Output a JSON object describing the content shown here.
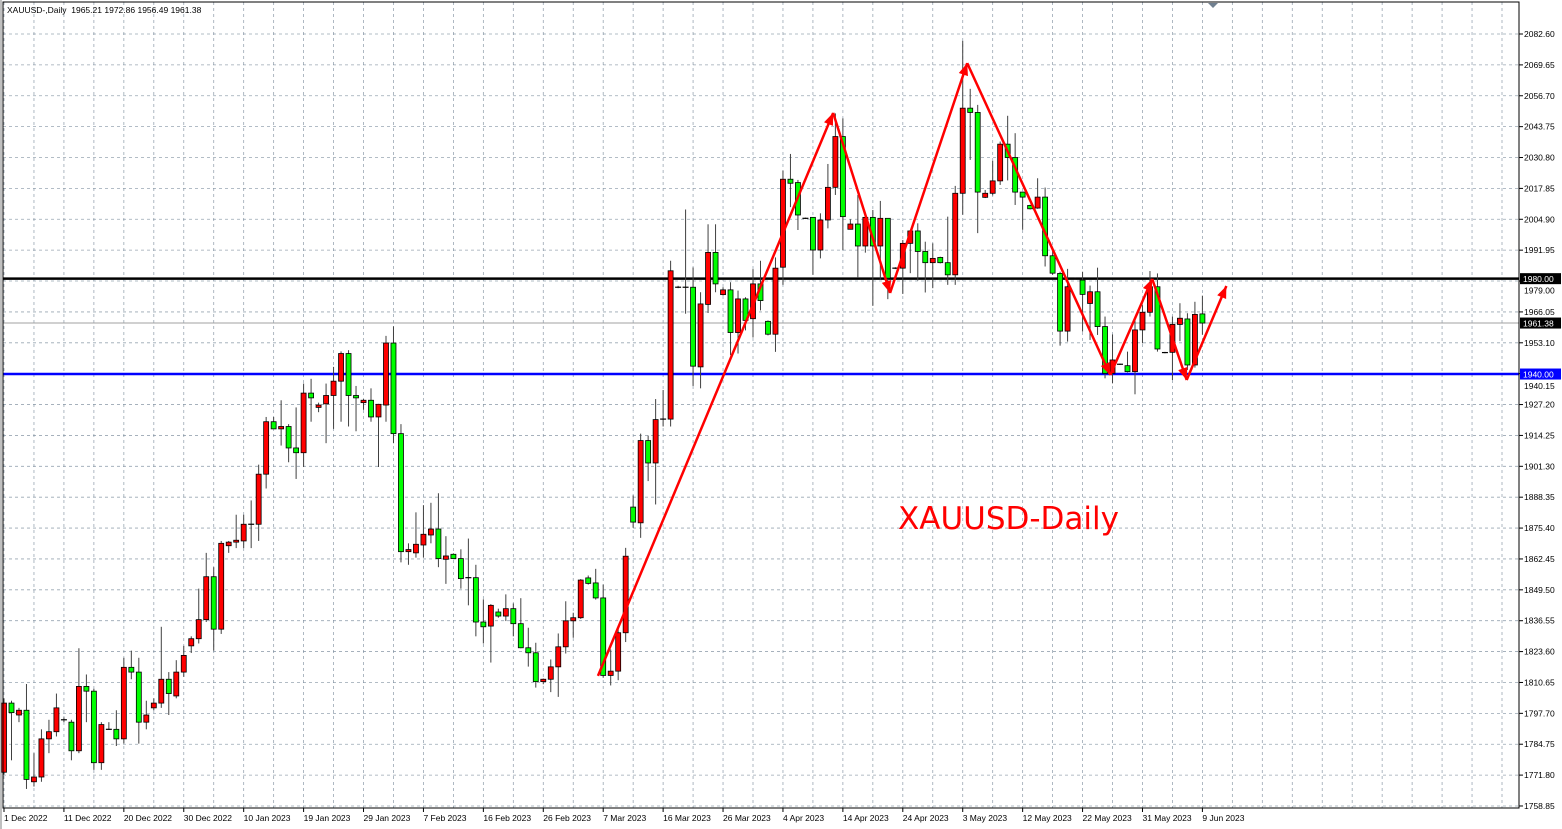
{
  "header": {
    "symbol": "XAUUSD-,Daily",
    "open": "1965.21",
    "high": "1972.86",
    "low": "1956.49",
    "close": "1961.38"
  },
  "annotation_text": "XAUUSD-Daily",
  "colors": {
    "up_candle": "#ff0000",
    "down_candle": "#00ff00",
    "resistance_line": "#000000",
    "support_line": "#0000ff",
    "current_price_line": "#a0a0a0",
    "grid": "#8090a0",
    "annotation": "#ff0000"
  },
  "chart_data": {
    "type": "candlestick",
    "title": "XAUUSD-,Daily",
    "ylim": [
      1758.85,
      2082.6
    ],
    "grid": true,
    "y_ticks": [
      "2082.60",
      "2069.65",
      "2056.70",
      "2043.75",
      "2030.80",
      "2017.85",
      "2004.90",
      "1991.95",
      "1979.00",
      "1966.05",
      "1953.10",
      "1940.15",
      "1927.20",
      "1914.25",
      "1901.30",
      "1888.35",
      "1875.40",
      "1862.45",
      "1849.50",
      "1836.55",
      "1823.60",
      "1810.65",
      "1797.70",
      "1784.75",
      "1771.80",
      "1758.85"
    ],
    "x_ticks": [
      "1 Dec 2022",
      "11 Dec 2022",
      "20 Dec 2022",
      "30 Dec 2022",
      "10 Jan 2023",
      "19 Jan 2023",
      "29 Jan 2023",
      "7 Feb 2023",
      "16 Feb 2023",
      "26 Feb 2023",
      "7 Mar 2023",
      "16 Mar 2023",
      "26 Mar 2023",
      "4 Apr 2023",
      "14 Apr 2023",
      "24 Apr 2023",
      "3 May 2023",
      "12 May 2023",
      "22 May 2023",
      "31 May 2023",
      "9 Jun 2023"
    ],
    "x_tick_every_bars": 8,
    "ohlc_fields": [
      "open",
      "high",
      "low",
      "close"
    ],
    "candles": [
      [
        1773,
        1804,
        1772,
        1802
      ],
      [
        1802,
        1803,
        1778,
        1798
      ],
      [
        1797,
        1800,
        1794,
        1799
      ],
      [
        1799,
        1810,
        1766,
        1770
      ],
      [
        1769,
        1781,
        1767,
        1771
      ],
      [
        1771,
        1791,
        1769,
        1787
      ],
      [
        1787,
        1795,
        1781,
        1790
      ],
      [
        1790,
        1806,
        1788,
        1800
      ],
      [
        1795,
        1796,
        1794,
        1795.1
      ],
      [
        1794,
        1795,
        1778,
        1782
      ],
      [
        1782,
        1825,
        1781,
        1809
      ],
      [
        1809,
        1814,
        1794,
        1807
      ],
      [
        1807,
        1808,
        1774,
        1777
      ],
      [
        1777,
        1794,
        1774,
        1793
      ],
      [
        1791,
        1794,
        1791,
        1791.1
      ],
      [
        1791,
        1799,
        1784,
        1787
      ],
      [
        1787,
        1821,
        1785,
        1817
      ],
      [
        1817,
        1824,
        1812,
        1815
      ],
      [
        1815,
        1821,
        1785,
        1794
      ],
      [
        1794,
        1803,
        1791,
        1797
      ],
      [
        1800,
        1804,
        1799,
        1802
      ],
      [
        1802,
        1834,
        1800,
        1812
      ],
      [
        1812,
        1815,
        1797,
        1806
      ],
      [
        1805,
        1820,
        1804,
        1815
      ],
      [
        1815,
        1826,
        1813,
        1822
      ],
      [
        1826,
        1830,
        1823,
        1829
      ],
      [
        1829,
        1850,
        1827,
        1837
      ],
      [
        1837,
        1865,
        1836,
        1855
      ],
      [
        1855,
        1859,
        1824,
        1833
      ],
      [
        1833,
        1870,
        1831,
        1869
      ],
      [
        1868,
        1870,
        1865,
        1869.5
      ],
      [
        1869.5,
        1881,
        1867,
        1870.3
      ],
      [
        1870,
        1881,
        1867,
        1877
      ],
      [
        1877,
        1887,
        1867,
        1877.1
      ],
      [
        1877,
        1902,
        1870,
        1898
      ],
      [
        1898,
        1922,
        1892,
        1920
      ],
      [
        1920,
        1922,
        1917,
        1917
      ],
      [
        1917,
        1929,
        1910,
        1918
      ],
      [
        1918,
        1919,
        1903,
        1909
      ],
      [
        1909,
        1926,
        1896,
        1907
      ],
      [
        1907,
        1936,
        1901,
        1932
      ],
      [
        1932,
        1938,
        1920,
        1930
      ],
      [
        1926,
        1928,
        1924,
        1927
      ],
      [
        1927.5,
        1936,
        1911,
        1931
      ],
      [
        1931,
        1943,
        1917,
        1937
      ],
      [
        1937,
        1949.5,
        1920,
        1948.6
      ],
      [
        1948.6,
        1950,
        1918,
        1931
      ],
      [
        1931,
        1935,
        1916,
        1930
      ],
      [
        1928,
        1929.5,
        1925,
        1929
      ],
      [
        1929,
        1934,
        1920,
        1922
      ],
      [
        1922,
        1927.5,
        1901,
        1927.3
      ],
      [
        1927,
        1956,
        1920,
        1953
      ],
      [
        1953,
        1960,
        1911,
        1915
      ],
      [
        1915,
        1919,
        1861,
        1865.5
      ],
      [
        1865.5,
        1869,
        1860,
        1866.4
      ],
      [
        1865,
        1882,
        1863,
        1868.6
      ],
      [
        1868.3,
        1885,
        1863,
        1872.8
      ],
      [
        1872.5,
        1886,
        1869,
        1875
      ],
      [
        1875,
        1890,
        1859,
        1862.6
      ],
      [
        1862.3,
        1872,
        1852,
        1863.7
      ],
      [
        1864.4,
        1864.8,
        1862.5,
        1862.6
      ],
      [
        1862.6,
        1866.5,
        1850,
        1854.2
      ],
      [
        1854.6,
        1871,
        1843,
        1854.7
      ],
      [
        1854.6,
        1860,
        1830,
        1836
      ],
      [
        1836,
        1845.5,
        1827,
        1834
      ],
      [
        1834.3,
        1843.5,
        1819,
        1843
      ],
      [
        1840.2,
        1841.6,
        1837.8,
        1838.5
      ],
      [
        1838.5,
        1847.6,
        1836.4,
        1841.6
      ],
      [
        1841.6,
        1843.8,
        1830,
        1835.3
      ],
      [
        1835.3,
        1846,
        1825,
        1825.2
      ],
      [
        1825.2,
        1833.6,
        1817.3,
        1823.1
      ],
      [
        1823.1,
        1827.3,
        1808.5,
        1811
      ],
      [
        1811,
        1812.3,
        1809.9,
        1812
      ],
      [
        1812,
        1820.3,
        1806.6,
        1817.2
      ],
      [
        1817.2,
        1831.2,
        1804.6,
        1825.6
      ],
      [
        1825.6,
        1844.7,
        1822.8,
        1836.5
      ],
      [
        1836.5,
        1839.9,
        1829.4,
        1837.8
      ],
      [
        1837.8,
        1854,
        1837.3,
        1853.6
      ],
      [
        1854.5,
        1855.5,
        1851.7,
        1852.2
      ],
      [
        1852.4,
        1858.3,
        1845.4,
        1846.1
      ],
      [
        1846.1,
        1851.7,
        1812.6,
        1813.6
      ],
      [
        1813.6,
        1824.5,
        1809.4,
        1815.4
      ],
      [
        1815.4,
        1832.9,
        1811.6,
        1831.5
      ],
      [
        1831.5,
        1867.1,
        1827.6,
        1863.6
      ],
      [
        1884.2,
        1889.1,
        1875.5,
        1877.9
      ],
      [
        1877.6,
        1915,
        1871.3,
        1912.1
      ],
      [
        1912.1,
        1914.2,
        1895.1,
        1902.7
      ],
      [
        1902.7,
        1929.5,
        1885.3,
        1920.9
      ],
      [
        1921.1,
        1933.3,
        1918,
        1921.2
      ],
      [
        1921.1,
        1987.5,
        1918,
        1983.3
      ],
      [
        1976.4,
        1977,
        1976,
        1976.5
      ],
      [
        1976.4,
        2009,
        1965.3,
        1976.5
      ],
      [
        1976.4,
        1984.7,
        1935,
        1943.3
      ],
      [
        1943,
        1974.3,
        1934,
        1969.4
      ],
      [
        1969.2,
        2002.8,
        1965.6,
        1991
      ],
      [
        1991,
        2002.8,
        1974.3,
        1977.8
      ],
      [
        1973.3,
        1976.4,
        1972.9,
        1975.3
      ],
      [
        1975.3,
        1978.5,
        1947.9,
        1957.4
      ],
      [
        1957.4,
        1975,
        1948.6,
        1971.5
      ],
      [
        1971.5,
        1972.2,
        1958.3,
        1962.5
      ],
      [
        1963.2,
        1984,
        1955.3,
        1977.8
      ],
      [
        1977.8,
        1987.5,
        1966.7,
        1970.8
      ],
      [
        1962.1,
        1962.5,
        1956.2,
        1956.7
      ],
      [
        1956.7,
        1988.9,
        1949.3,
        1984.4
      ],
      [
        1984.8,
        2025.3,
        1977.4,
        2021.7
      ],
      [
        2021.7,
        2032.3,
        2010,
        2020
      ],
      [
        2020.3,
        2021.4,
        2000.4,
        2006.7
      ],
      [
        2005.3,
        2005.6,
        2005,
        2005.4
      ],
      [
        2005.7,
        2005.7,
        1981.6,
        1992
      ],
      [
        1992,
        2007.4,
        1988.5,
        2004.6
      ],
      [
        2004.6,
        2028.1,
        2001.1,
        2018.3
      ],
      [
        2018.3,
        2049.3,
        2015.1,
        2039.6
      ],
      [
        2039.6,
        2047.2,
        1992,
        2006
      ],
      [
        2000.7,
        2004.9,
        2000.7,
        2002.9
      ],
      [
        2002.9,
        2015.1,
        1980.6,
        1993.7
      ],
      [
        1993.7,
        2006,
        1990.9,
        2005.7
      ],
      [
        2005.7,
        2008.8,
        1968.6,
        1993.7
      ],
      [
        1993.7,
        2012.6,
        1979.5,
        2005.3
      ],
      [
        2005.3,
        2005.3,
        1971.4,
        1980.2
      ],
      [
        1984.4,
        1984.8,
        1984,
        1984.5
      ],
      [
        1984.4,
        1996.2,
        1973.6,
        1994.8
      ],
      [
        1994.8,
        2000.4,
        1982.3,
        2000
      ],
      [
        2000,
        2003.2,
        1979.2,
        1991.4
      ],
      [
        1991.4,
        1995.5,
        1974.2,
        1986.7
      ],
      [
        1986.7,
        1994.8,
        1976,
        1988.5
      ],
      [
        1988.9,
        1989.2,
        1986.4,
        1986.7
      ],
      [
        1986.7,
        2006,
        1977.4,
        1981.6
      ],
      [
        1981.6,
        2018.9,
        1977.4,
        2015.8
      ],
      [
        2015.8,
        2079.7,
        2006.8,
        2051.5
      ],
      [
        2051.5,
        2059.6,
        2029.8,
        2049.7
      ],
      [
        2049.7,
        2052.9,
        1999.1,
        2016.3
      ],
      [
        2014.1,
        2017.2,
        2013.8,
        2015.8
      ],
      [
        2015.8,
        2029.4,
        2014.9,
        2021
      ],
      [
        2021,
        2037.5,
        2019.3,
        2036.4
      ],
      [
        2036.4,
        2048.3,
        2021.2,
        2030.8
      ],
      [
        2030.8,
        2041,
        2010.9,
        2016.3
      ],
      [
        2016.3,
        2016.5,
        2000.5,
        2014.2
      ],
      [
        2010.7,
        2011,
        2009,
        2009.3
      ],
      [
        2009.6,
        2022.1,
        2009.3,
        2014.2
      ],
      [
        2014.2,
        2018.2,
        1985.1,
        1989.6
      ],
      [
        1989.6,
        1992.8,
        1981.6,
        1982.3
      ],
      [
        1982.2,
        1982.9,
        1951.9,
        1958
      ],
      [
        1958,
        1984.1,
        1953.6,
        1976.6
      ],
      [
        1980.1,
        1980.4,
        1979.8,
        1980.2
      ],
      [
        1979.4,
        1982.9,
        1957.8,
        1973.4
      ],
      [
        1969.6,
        1977.1,
        1954.3,
        1974.5
      ],
      [
        1974.5,
        1984.6,
        1956.4,
        1959.9
      ],
      [
        1959.9,
        1964.1,
        1938.2,
        1940.3
      ],
      [
        1940.3,
        1956.6,
        1936.1,
        1945.9
      ],
      [
        1944.1,
        1944.4,
        1943.8,
        1944.2
      ],
      [
        1943.5,
        1949.4,
        1940.7,
        1941
      ],
      [
        1941,
        1962.6,
        1931.5,
        1958.5
      ],
      [
        1958.5,
        1968.9,
        1952.9,
        1965.9
      ],
      [
        1965.9,
        1983.2,
        1964.1,
        1976.6
      ],
      [
        1976.6,
        1982.2,
        1949.4,
        1950.5
      ],
      [
        1949,
        1949.3,
        1948.7,
        1949.1
      ],
      [
        1949.1,
        1964.1,
        1937.5,
        1960.8
      ],
      [
        1960.8,
        1969.7,
        1953.8,
        1963.4
      ],
      [
        1963.1,
        1965.5,
        1941.7,
        1943.8
      ],
      [
        1943.8,
        1970.3,
        1942.7,
        1965
      ],
      [
        1965.21,
        1972.86,
        1956.49,
        1961.38
      ]
    ],
    "horizontal_lines": [
      {
        "price": 1980.0,
        "label": "1980.00",
        "color": "#000000",
        "role": "resistance"
      },
      {
        "price": 1940.0,
        "label": "1940.00",
        "color": "#0000ff",
        "role": "support"
      },
      {
        "price": 1961.38,
        "label": "1961.38",
        "color": "#a0a0a0",
        "role": "current-price"
      }
    ],
    "zigzag_arrows": [
      [
        80.3,
        1813.4
      ],
      [
        111.7,
        2049.5
      ],
      [
        119.3,
        1974.0
      ],
      [
        129.6,
        2070.4
      ],
      [
        148.7,
        1939.6
      ],
      [
        154.3,
        1979.9
      ],
      [
        158.9,
        1937.5
      ],
      [
        164.2,
        1976.9
      ]
    ]
  }
}
